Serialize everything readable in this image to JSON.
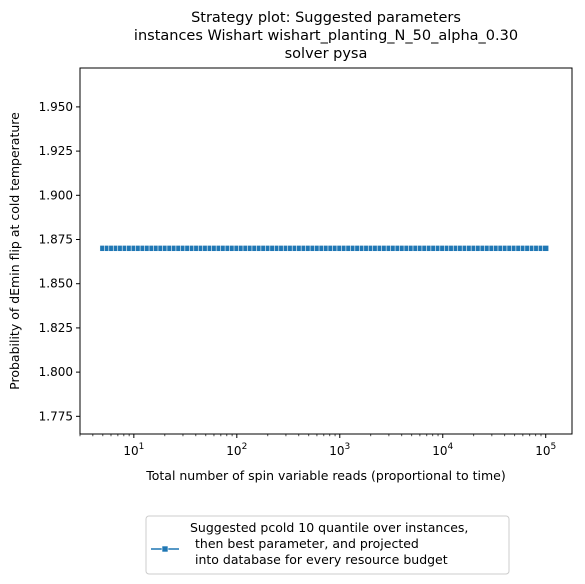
{
  "chart_data": {
    "type": "line",
    "title_lines": [
      "Strategy plot: Suggested parameters",
      "instances Wishart wishart_planting_N_50_alpha_0.30",
      "solver pysa"
    ],
    "xlabel": "Total number of spin variable reads (proportional to time)",
    "ylabel": "Probability of dEmin flip at cold temperature",
    "x_scale": "log",
    "xlim": [
      3,
      180000
    ],
    "ylim": [
      1.765,
      1.972
    ],
    "x_ticks": [
      {
        "value": 10,
        "base": "10",
        "exp": "1"
      },
      {
        "value": 100,
        "base": "10",
        "exp": "2"
      },
      {
        "value": 1000,
        "base": "10",
        "exp": "3"
      },
      {
        "value": 10000,
        "base": "10",
        "exp": "4"
      },
      {
        "value": 100000,
        "base": "10",
        "exp": "5"
      }
    ],
    "y_ticks": [
      {
        "value": 1.775,
        "label": "1.775"
      },
      {
        "value": 1.8,
        "label": "1.800"
      },
      {
        "value": 1.825,
        "label": "1.825"
      },
      {
        "value": 1.85,
        "label": "1.850"
      },
      {
        "value": 1.875,
        "label": "1.875"
      },
      {
        "value": 1.9,
        "label": "1.900"
      },
      {
        "value": 1.925,
        "label": "1.925"
      },
      {
        "value": 1.95,
        "label": "1.950"
      }
    ],
    "series": [
      {
        "legend_lines": [
          "Suggested pcold 10 quantile over instances,",
          "then best parameter, and projected",
          "into database for every resource budget"
        ],
        "color": "#1f77b4",
        "marker": "square",
        "x_range": [
          5,
          100000
        ],
        "n_points": 100,
        "y_constant": 1.87
      }
    ],
    "legend_position": "below plot, centered",
    "grid": false
  }
}
